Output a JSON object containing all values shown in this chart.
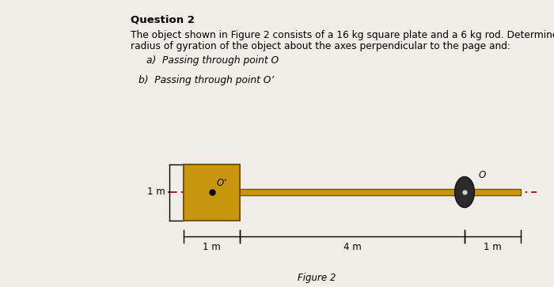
{
  "title": "Question 2",
  "question_text_line1": "The object shown in Figure 2 consists of a 16 kg square plate and a 6 kg rod. Determine the",
  "question_text_line2": "radius of gyration of the object about the axes perpendicular to the page and:",
  "part_a": "a)  Passing through point O",
  "part_b": "b)  Passing through point O’",
  "figure_label": "Figure 2",
  "bg_color": "#f0ede8",
  "plate_color": "#c8960c",
  "plate_edge_color": "#7a5500",
  "rod_color": "#c8960c",
  "rod_edge_color": "#7a5500",
  "dashed_color": "#8B0000",
  "label_1m_left": "1 m",
  "label_1m_bottom": "1 m",
  "label_4m": "4 m",
  "label_1m_right": "1 m",
  "label_O": "O",
  "label_O_prime": "O’"
}
